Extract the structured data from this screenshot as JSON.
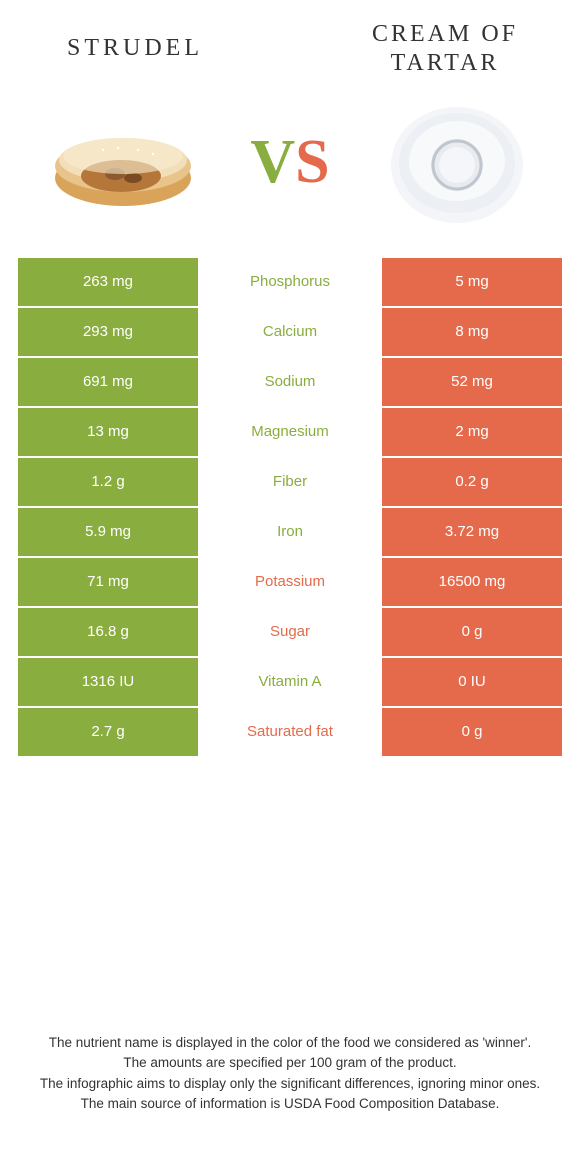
{
  "colors": {
    "left": "#8aad3f",
    "right": "#e56a4b",
    "background": "#ffffff",
    "text_dark": "#333333"
  },
  "header": {
    "left_title": "Strudel",
    "right_title_line1": "Cream of",
    "right_title_line2": "Tartar",
    "vs_v": "V",
    "vs_s": "S"
  },
  "rows": [
    {
      "left": "263 mg",
      "label": "Phosphorus",
      "right": "5 mg",
      "winner": "left"
    },
    {
      "left": "293 mg",
      "label": "Calcium",
      "right": "8 mg",
      "winner": "left"
    },
    {
      "left": "691 mg",
      "label": "Sodium",
      "right": "52 mg",
      "winner": "left"
    },
    {
      "left": "13 mg",
      "label": "Magnesium",
      "right": "2 mg",
      "winner": "left"
    },
    {
      "left": "1.2 g",
      "label": "Fiber",
      "right": "0.2 g",
      "winner": "left"
    },
    {
      "left": "5.9 mg",
      "label": "Iron",
      "right": "3.72 mg",
      "winner": "left"
    },
    {
      "left": "71 mg",
      "label": "Potassium",
      "right": "16500 mg",
      "winner": "right"
    },
    {
      "left": "16.8 g",
      "label": "Sugar",
      "right": "0 g",
      "winner": "right"
    },
    {
      "left": "1316 IU",
      "label": "Vitamin A",
      "right": "0 IU",
      "winner": "left"
    },
    {
      "left": "2.7 g",
      "label": "Saturated fat",
      "right": "0 g",
      "winner": "right"
    }
  ],
  "footer": {
    "line1": "The nutrient name is displayed in the color of the food we considered as 'winner'.",
    "line2": "The amounts are specified per 100 gram of the product.",
    "line3": "The infographic aims to display only the significant differences, ignoring minor ones.",
    "line4": "The main source of information is USDA Food Composition Database."
  }
}
